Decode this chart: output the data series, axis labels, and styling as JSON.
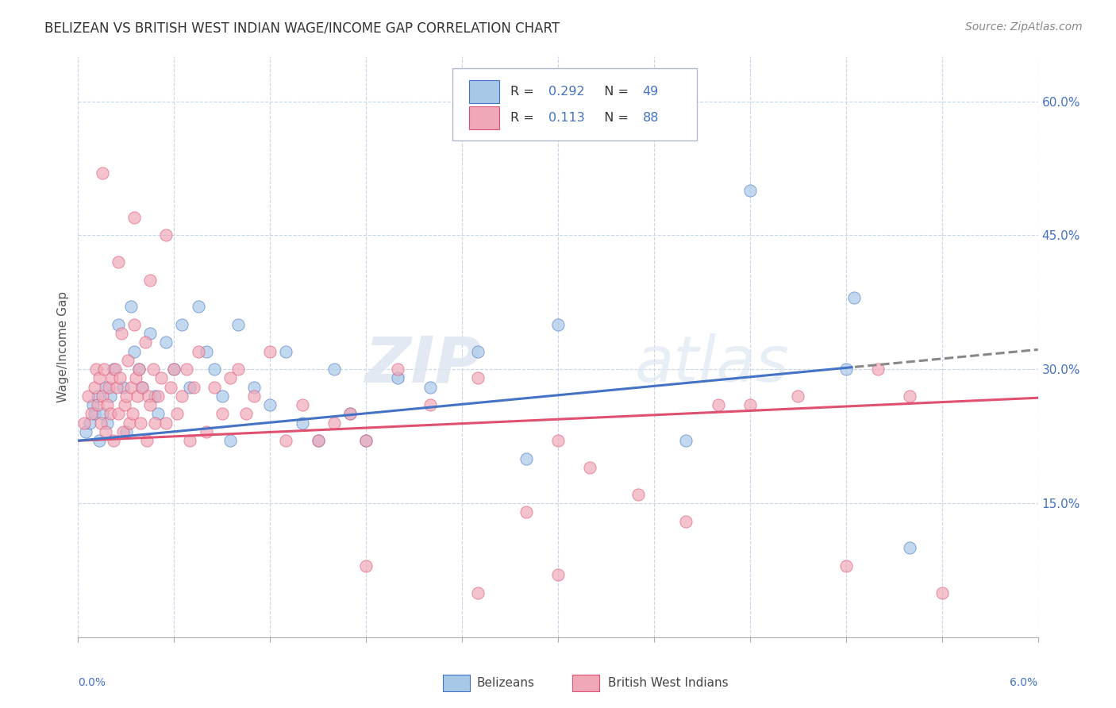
{
  "title": "BELIZEAN VS BRITISH WEST INDIAN WAGE/INCOME GAP CORRELATION CHART",
  "source": "Source: ZipAtlas.com",
  "ylabel": "Wage/Income Gap",
  "watermark_text": "ZIP",
  "watermark_text2": "atlas",
  "xlim": [
    0.0,
    6.0
  ],
  "ylim": [
    0.0,
    65.0
  ],
  "yticks": [
    15.0,
    30.0,
    45.0,
    60.0
  ],
  "xticks": [
    0.0,
    0.6,
    1.2,
    1.8,
    2.4,
    3.0,
    3.6,
    4.2,
    4.8,
    5.4,
    6.0
  ],
  "belizean_color": "#a8c8e8",
  "bwi_color": "#f0a8b8",
  "belizean_line_color": "#4472c4",
  "bwi_line_color": "#e05070",
  "R_belizean": "0.292",
  "N_belizean": "49",
  "R_bwi": "0.113",
  "N_bwi": "88",
  "legend_color": "#4472c4",
  "grid_color": "#c8d4e8",
  "background_color": "#ffffff",
  "belizean_x": [
    0.05,
    0.07,
    0.09,
    0.1,
    0.12,
    0.13,
    0.15,
    0.17,
    0.18,
    0.2,
    0.22,
    0.25,
    0.28,
    0.3,
    0.33,
    0.35,
    0.38,
    0.4,
    0.45,
    0.48,
    0.5,
    0.55,
    0.6,
    0.65,
    0.7,
    0.75,
    0.8,
    0.85,
    0.9,
    0.95,
    1.0,
    1.1,
    1.2,
    1.3,
    1.4,
    1.5,
    1.6,
    1.7,
    1.8,
    2.0,
    2.2,
    2.5,
    2.8,
    3.0,
    3.8,
    4.2,
    4.8,
    4.85,
    5.2
  ],
  "belizean_y": [
    23,
    24,
    26,
    25,
    27,
    22,
    25,
    28,
    24,
    27,
    30,
    35,
    28,
    23,
    37,
    32,
    30,
    28,
    34,
    27,
    25,
    33,
    30,
    35,
    28,
    37,
    32,
    30,
    27,
    22,
    35,
    28,
    26,
    32,
    24,
    22,
    30,
    25,
    22,
    29,
    28,
    32,
    20,
    35,
    22,
    50,
    30,
    38,
    10
  ],
  "bwi_x": [
    0.04,
    0.06,
    0.08,
    0.1,
    0.11,
    0.12,
    0.13,
    0.14,
    0.15,
    0.16,
    0.17,
    0.18,
    0.19,
    0.2,
    0.21,
    0.22,
    0.23,
    0.24,
    0.25,
    0.26,
    0.27,
    0.28,
    0.29,
    0.3,
    0.31,
    0.32,
    0.33,
    0.34,
    0.35,
    0.36,
    0.37,
    0.38,
    0.39,
    0.4,
    0.42,
    0.43,
    0.44,
    0.45,
    0.47,
    0.48,
    0.5,
    0.52,
    0.55,
    0.58,
    0.6,
    0.62,
    0.65,
    0.68,
    0.7,
    0.72,
    0.75,
    0.8,
    0.85,
    0.9,
    0.95,
    1.0,
    1.05,
    1.1,
    1.2,
    1.3,
    1.4,
    1.5,
    1.6,
    1.7,
    1.8,
    2.0,
    2.2,
    2.5,
    2.8,
    3.0,
    3.2,
    3.5,
    3.8,
    4.0,
    4.2,
    4.5,
    4.8,
    5.0,
    5.2,
    5.4,
    0.15,
    0.25,
    0.35,
    0.45,
    0.55,
    1.8,
    2.5,
    3.0
  ],
  "bwi_y": [
    24,
    27,
    25,
    28,
    30,
    26,
    29,
    24,
    27,
    30,
    23,
    26,
    28,
    25,
    29,
    22,
    30,
    28,
    25,
    29,
    34,
    23,
    26,
    27,
    31,
    24,
    28,
    25,
    35,
    29,
    27,
    30,
    24,
    28,
    33,
    22,
    27,
    26,
    30,
    24,
    27,
    29,
    24,
    28,
    30,
    25,
    27,
    30,
    22,
    28,
    32,
    23,
    28,
    25,
    29,
    30,
    25,
    27,
    32,
    22,
    26,
    22,
    24,
    25,
    22,
    30,
    26,
    29,
    14,
    22,
    19,
    16,
    13,
    26,
    26,
    27,
    8,
    30,
    27,
    5,
    52,
    42,
    47,
    40,
    45,
    8,
    5,
    7
  ]
}
